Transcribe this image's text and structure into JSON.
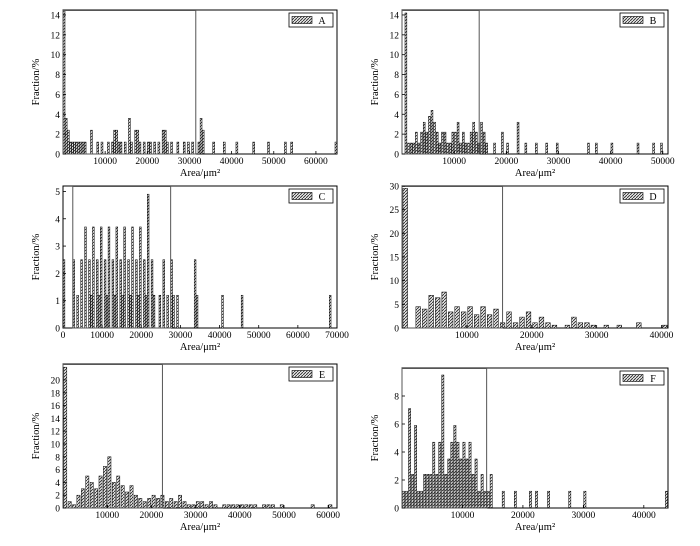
{
  "figure": {
    "panels_layout": "3 rows x 2 columns histogram grid",
    "common_xlabel": "Area/μm²",
    "common_ylabel": "Fraction/%"
  },
  "chart_data": [
    {
      "type": "bar",
      "legend": "A",
      "legend_position": "top-right",
      "xlabel": "Area/μm²",
      "ylabel": "Fraction/%",
      "xlim": [
        0,
        65000
      ],
      "ylim": [
        0,
        14.5
      ],
      "xticks": [
        10000,
        20000,
        30000,
        40000,
        50000,
        60000
      ],
      "yticks": [
        0,
        2,
        4,
        6,
        8,
        10,
        12,
        14
      ],
      "bin_width": 500,
      "highlight_box_x": [
        0,
        31500
      ],
      "bars": [
        [
          250,
          14.4
        ],
        [
          750,
          3.6
        ],
        [
          1250,
          2.4
        ],
        [
          1750,
          1.2
        ],
        [
          2250,
          1.2
        ],
        [
          2750,
          1.2
        ],
        [
          3250,
          1.2
        ],
        [
          3750,
          1.2
        ],
        [
          4250,
          1.2
        ],
        [
          4750,
          1.2
        ],
        [
          5250,
          1.2
        ],
        [
          6750,
          2.4
        ],
        [
          8250,
          1.2
        ],
        [
          9250,
          1.2
        ],
        [
          10750,
          1.2
        ],
        [
          11750,
          1.2
        ],
        [
          12250,
          2.4
        ],
        [
          12750,
          2.4
        ],
        [
          13250,
          1.2
        ],
        [
          13750,
          1.2
        ],
        [
          14750,
          1.2
        ],
        [
          15750,
          3.6
        ],
        [
          16250,
          1.2
        ],
        [
          17250,
          2.4
        ],
        [
          17750,
          2.4
        ],
        [
          18250,
          1.2
        ],
        [
          19250,
          1.2
        ],
        [
          20250,
          1.2
        ],
        [
          20750,
          1.2
        ],
        [
          21750,
          1.2
        ],
        [
          22750,
          1.2
        ],
        [
          23750,
          2.4
        ],
        [
          24250,
          2.4
        ],
        [
          24750,
          1.2
        ],
        [
          25750,
          1.2
        ],
        [
          27250,
          1.2
        ],
        [
          28750,
          1.2
        ],
        [
          29750,
          1.2
        ],
        [
          30750,
          1.2
        ],
        [
          32250,
          1.2
        ],
        [
          32750,
          3.6
        ],
        [
          33250,
          2.4
        ],
        [
          35750,
          1.2
        ],
        [
          38250,
          1.2
        ],
        [
          41250,
          1.2
        ],
        [
          45250,
          1.2
        ],
        [
          48750,
          1.2
        ],
        [
          52750,
          1.2
        ],
        [
          54250,
          1.2
        ],
        [
          64750,
          1.2
        ]
      ]
    },
    {
      "type": "bar",
      "legend": "B",
      "legend_position": "top-right",
      "xlabel": "Area/μm²",
      "ylabel": "Fraction/%",
      "xlim": [
        0,
        51000
      ],
      "ylim": [
        0,
        14.5
      ],
      "xticks": [
        10000,
        20000,
        30000,
        40000,
        50000
      ],
      "yticks": [
        0,
        2,
        4,
        6,
        8,
        10,
        12,
        14
      ],
      "bin_width": 400,
      "highlight_box_x": [
        0,
        14800
      ],
      "bars": [
        [
          750,
          14.2
        ],
        [
          1250,
          1.1
        ],
        [
          1750,
          1.1
        ],
        [
          2250,
          1.1
        ],
        [
          2750,
          2.2
        ],
        [
          3250,
          1.1
        ],
        [
          3750,
          2.2
        ],
        [
          4250,
          3.2
        ],
        [
          4750,
          2.2
        ],
        [
          5250,
          3.8
        ],
        [
          5750,
          4.4
        ],
        [
          6250,
          3.2
        ],
        [
          6750,
          2.2
        ],
        [
          7250,
          1.1
        ],
        [
          7750,
          2.2
        ],
        [
          8250,
          2.2
        ],
        [
          8750,
          1.1
        ],
        [
          9250,
          1.1
        ],
        [
          9750,
          2.2
        ],
        [
          10250,
          2.2
        ],
        [
          10750,
          3.2
        ],
        [
          11250,
          1.1
        ],
        [
          11750,
          2.2
        ],
        [
          12250,
          1.1
        ],
        [
          12750,
          1.1
        ],
        [
          13250,
          2.2
        ],
        [
          13750,
          3.2
        ],
        [
          14250,
          2.2
        ],
        [
          14750,
          1.1
        ],
        [
          15250,
          3.2
        ],
        [
          15750,
          2.2
        ],
        [
          16250,
          1.1
        ],
        [
          17750,
          1.1
        ],
        [
          19250,
          2.2
        ],
        [
          20250,
          1.1
        ],
        [
          22250,
          3.2
        ],
        [
          23750,
          1.1
        ],
        [
          25750,
          1.1
        ],
        [
          27750,
          1.1
        ],
        [
          29750,
          1.1
        ],
        [
          35750,
          1.1
        ],
        [
          37250,
          1.1
        ],
        [
          40250,
          1.1
        ],
        [
          45250,
          1.1
        ],
        [
          48250,
          1.1
        ],
        [
          49750,
          1.1
        ]
      ]
    },
    {
      "type": "bar",
      "legend": "C",
      "legend_position": "top-right",
      "xlabel": "Area/μm²",
      "ylabel": "Fraction/%",
      "xlim": [
        0,
        70000
      ],
      "ylim": [
        0,
        5.2
      ],
      "xticks": [
        0,
        10000,
        20000,
        30000,
        40000,
        50000,
        60000,
        70000
      ],
      "yticks": [
        0,
        1,
        2,
        3,
        4,
        5
      ],
      "bin_width": 500,
      "highlight_box_x": [
        2500,
        27500
      ],
      "bars": [
        [
          250,
          2.5
        ],
        [
          2750,
          2.5
        ],
        [
          3750,
          1.2
        ],
        [
          4750,
          2.5
        ],
        [
          5750,
          3.7
        ],
        [
          6750,
          2.5
        ],
        [
          7250,
          1.2
        ],
        [
          7750,
          3.7
        ],
        [
          8750,
          2.5
        ],
        [
          9250,
          1.2
        ],
        [
          9750,
          3.7
        ],
        [
          10750,
          2.5
        ],
        [
          11250,
          1.2
        ],
        [
          11750,
          3.7
        ],
        [
          12750,
          2.5
        ],
        [
          13250,
          1.2
        ],
        [
          13750,
          3.7
        ],
        [
          14750,
          2.5
        ],
        [
          15250,
          1.2
        ],
        [
          15750,
          3.7
        ],
        [
          16750,
          2.5
        ],
        [
          17250,
          1.2
        ],
        [
          17750,
          3.7
        ],
        [
          18750,
          2.5
        ],
        [
          19250,
          1.2
        ],
        [
          19750,
          3.7
        ],
        [
          20750,
          2.5
        ],
        [
          21250,
          1.2
        ],
        [
          21750,
          4.9
        ],
        [
          22750,
          2.5
        ],
        [
          23250,
          1.2
        ],
        [
          24750,
          1.2
        ],
        [
          25750,
          2.5
        ],
        [
          26750,
          1.2
        ],
        [
          27750,
          2.5
        ],
        [
          28250,
          1.2
        ],
        [
          29250,
          1.2
        ],
        [
          33750,
          2.5
        ],
        [
          34250,
          1.2
        ],
        [
          40750,
          1.2
        ],
        [
          45750,
          1.2
        ],
        [
          68250,
          1.2
        ]
      ]
    },
    {
      "type": "bar",
      "legend": "D",
      "legend_position": "top-right",
      "xlabel": "Area/μm²",
      "ylabel": "Fraction/%",
      "xlim": [
        0,
        41000
      ],
      "ylim": [
        0,
        30
      ],
      "xticks": [
        10000,
        20000,
        30000,
        40000
      ],
      "yticks": [
        0,
        5,
        10,
        15,
        20,
        25,
        30
      ],
      "bin_width": 800,
      "highlight_box_x": [
        0,
        15500
      ],
      "bars": [
        [
          500,
          29.5
        ],
        [
          2500,
          4.5
        ],
        [
          3500,
          4.0
        ],
        [
          4500,
          6.9
        ],
        [
          5500,
          6.4
        ],
        [
          6500,
          7.6
        ],
        [
          7500,
          3.4
        ],
        [
          8500,
          4.5
        ],
        [
          9500,
          3.4
        ],
        [
          10500,
          4.5
        ],
        [
          11500,
          2.8
        ],
        [
          12500,
          4.5
        ],
        [
          13500,
          2.8
        ],
        [
          14500,
          4.0
        ],
        [
          15500,
          1.1
        ],
        [
          16500,
          3.4
        ],
        [
          17500,
          1.1
        ],
        [
          18500,
          2.3
        ],
        [
          19500,
          3.4
        ],
        [
          20500,
          1.1
        ],
        [
          21500,
          2.3
        ],
        [
          22500,
          1.1
        ],
        [
          23500,
          0.6
        ],
        [
          25500,
          0.6
        ],
        [
          26500,
          2.3
        ],
        [
          27500,
          1.1
        ],
        [
          28500,
          1.1
        ],
        [
          29500,
          0.6
        ],
        [
          31500,
          0.6
        ],
        [
          33500,
          0.6
        ],
        [
          36500,
          1.1
        ],
        [
          40500,
          0.6
        ]
      ]
    },
    {
      "type": "bar",
      "legend": "E",
      "legend_position": "top-right",
      "xlabel": "Area/μm²",
      "ylabel": "Fraction/%",
      "xlim": [
        0,
        62000
      ],
      "ylim": [
        0,
        22.5
      ],
      "xticks": [
        10000,
        20000,
        30000,
        40000,
        50000,
        60000
      ],
      "yticks": [
        0,
        2,
        4,
        6,
        8,
        10,
        12,
        14,
        16,
        18,
        20
      ],
      "bin_width": 800,
      "highlight_box_x": [
        0,
        22500
      ],
      "bars": [
        [
          500,
          22.0
        ],
        [
          1500,
          1.0
        ],
        [
          2500,
          0.5
        ],
        [
          3500,
          2.0
        ],
        [
          4500,
          3.0
        ],
        [
          5500,
          5.0
        ],
        [
          6500,
          4.0
        ],
        [
          7500,
          3.0
        ],
        [
          8500,
          5.0
        ],
        [
          9500,
          6.5
        ],
        [
          10500,
          8.0
        ],
        [
          11500,
          4.0
        ],
        [
          12500,
          5.0
        ],
        [
          13500,
          3.5
        ],
        [
          14500,
          2.5
        ],
        [
          15500,
          3.5
        ],
        [
          16500,
          2.0
        ],
        [
          17500,
          1.5
        ],
        [
          18500,
          1.0
        ],
        [
          19500,
          1.5
        ],
        [
          20500,
          2.0
        ],
        [
          21500,
          1.5
        ],
        [
          22500,
          2.0
        ],
        [
          23500,
          1.0
        ],
        [
          24500,
          1.5
        ],
        [
          25500,
          1.0
        ],
        [
          26500,
          2.0
        ],
        [
          27500,
          1.0
        ],
        [
          28500,
          0.5
        ],
        [
          29500,
          0.5
        ],
        [
          30500,
          1.0
        ],
        [
          31500,
          1.0
        ],
        [
          32500,
          0.5
        ],
        [
          33500,
          1.0
        ],
        [
          34500,
          0.5
        ],
        [
          36500,
          0.5
        ],
        [
          37500,
          0.5
        ],
        [
          38500,
          0.5
        ],
        [
          39500,
          0.5
        ],
        [
          40500,
          0.5
        ],
        [
          41500,
          0.5
        ],
        [
          42500,
          0.5
        ],
        [
          43500,
          0.5
        ],
        [
          45500,
          0.5
        ],
        [
          46500,
          0.5
        ],
        [
          47500,
          0.5
        ],
        [
          49500,
          0.5
        ],
        [
          56500,
          0.5
        ],
        [
          60500,
          0.5
        ]
      ]
    },
    {
      "type": "bar",
      "legend": "F",
      "legend_position": "top-right",
      "xlabel": "Area/μm²",
      "ylabel": "Fraction/%",
      "xlim": [
        0,
        44000
      ],
      "ylim": [
        0,
        10
      ],
      "xticks": [
        10000,
        20000,
        30000,
        40000
      ],
      "yticks": [
        0,
        2,
        4,
        6,
        8
      ],
      "bin_width": 400,
      "highlight_box_x": [
        0,
        14000
      ],
      "bars": [
        [
          250,
          1.2
        ],
        [
          750,
          1.2
        ],
        [
          1250,
          7.1
        ],
        [
          1750,
          2.4
        ],
        [
          2250,
          5.9
        ],
        [
          2750,
          1.2
        ],
        [
          3250,
          1.2
        ],
        [
          3750,
          2.4
        ],
        [
          4250,
          2.4
        ],
        [
          4750,
          2.4
        ],
        [
          5250,
          4.7
        ],
        [
          5750,
          2.4
        ],
        [
          6250,
          4.7
        ],
        [
          6750,
          9.5
        ],
        [
          7250,
          2.4
        ],
        [
          7750,
          3.5
        ],
        [
          8250,
          4.7
        ],
        [
          8750,
          5.9
        ],
        [
          9250,
          4.7
        ],
        [
          9750,
          3.5
        ],
        [
          10250,
          4.7
        ],
        [
          10750,
          3.5
        ],
        [
          11250,
          4.7
        ],
        [
          11750,
          2.4
        ],
        [
          12250,
          3.5
        ],
        [
          12750,
          1.2
        ],
        [
          13250,
          2.4
        ],
        [
          13750,
          1.2
        ],
        [
          14250,
          1.2
        ],
        [
          14750,
          2.4
        ],
        [
          16750,
          1.2
        ],
        [
          18750,
          1.2
        ],
        [
          21250,
          1.2
        ],
        [
          22250,
          1.2
        ],
        [
          24250,
          1.2
        ],
        [
          27750,
          1.2
        ],
        [
          30250,
          1.2
        ],
        [
          43750,
          1.2
        ]
      ]
    }
  ]
}
